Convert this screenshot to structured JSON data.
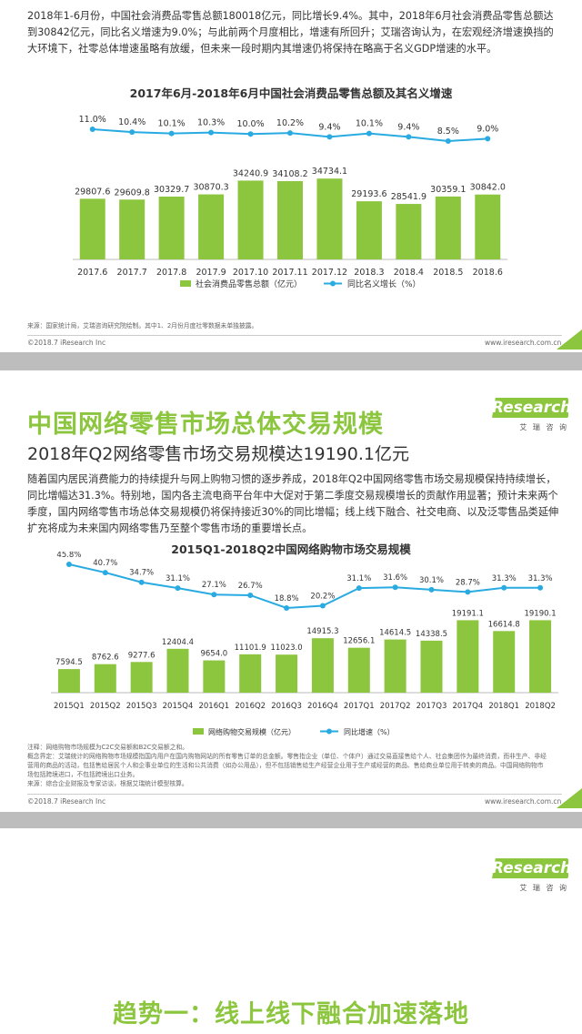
{
  "section1": {
    "paragraph": "2018年1-6月份，中国社会消费品零售总额180018亿元，同比增长9.4%。其中，2018年6月社会消费品零售总额达到30842亿元，同比名义增速为9.0%；与此前两个月度相比，增速有所回升；艾瑞咨询认为，在宏观经济增速换挡的大环境下，社零总体增速虽略有放缓，但未来一段时期内其增速仍将保持在略高于名义GDP增速的水平。",
    "source": "来源：国家统计局，艾瑞咨询研究院绘制。其中1、2月份月度社零数据未单独披露。",
    "copyright": "©2018.7 iResearch Inc",
    "website": "www.iresearch.com.cn"
  },
  "section2": {
    "headline": "中国网络零售市场总体交易规模",
    "subhead": "2018年Q2网络零售市场交易规模达19190.1亿元",
    "paragraph": "随着国内居民消费能力的持续提升与网上购物习惯的逐步养成，2018年Q2中国网络零售市场交易规模保持持续增长，同比增幅达31.3%。特别地，国内各主流电商平台年中大促对于第二季度交易规模增长的贡献作用显著；预计未来两个季度，国内网络零售市场总体交易规模仍将保持接近30%的同比增幅；线上线下融合、社交电商、以及泛零售品类延伸扩充将成为未来国内网络零售乃至整个零售市场的重要增长点。",
    "notes": [
      "注释：网络购物市场规模为C2C交易额和B2C交易额之和。",
      "概念界定：艾瑞统计的网络购物市场规模指国内用户在国内购物网站的所有零售订单的总金额。零售指企业（单位、个体户）通过交易直接售给个人、社会集团作为最终消费，而非生产、非经营用的商品的活动，包括售给居民个人和企事业单位的生活和公共消费（如办公用品），但不包括销售给生产经营企业用于生产或经营的商品、售给商业单位用于转卖的商品。中国网络购物市场包括跨境进口，不包括跨境出口业务。",
      "来源：综合企业财报及专家访谈，根据艾瑞统计模型核算。"
    ],
    "copyright": "©2018.7 iResearch Inc",
    "website": "www.iresearch.com.cn"
  },
  "logo": {
    "name": "iResearch",
    "sub": "艾 瑞 咨 询"
  },
  "bottom_title": "趋势一：线上线下融合加速落地",
  "colors": {
    "green": "#8cc63f",
    "blue": "#29abe2",
    "grey": "#bdbdbd"
  },
  "chart_data": [
    {
      "type": "bar",
      "title": "2017年6月-2018年6月中国社会消费品零售总额及其名义增速",
      "categories": [
        "2017.6",
        "2017.7",
        "2017.8",
        "2017.9",
        "2017.10",
        "2017.11",
        "2017.12",
        "2018.3",
        "2018.4",
        "2018.5",
        "2018.6"
      ],
      "series": [
        {
          "name": "社会消费品零售总额（亿元）",
          "kind": "bar",
          "values": [
            29807.6,
            29609.8,
            30329.7,
            30870.3,
            34240.9,
            34108.2,
            34734.1,
            29193.6,
            28541.9,
            30359.1,
            30842.0
          ],
          "labels": [
            "29807.6",
            "29609.8",
            "30329.7",
            "30870.3",
            "34240.9",
            "34108.2",
            "34734.1",
            "29193.6",
            "28541.9",
            "30359.1",
            "30842.0"
          ]
        },
        {
          "name": "同比名义增长（%）",
          "kind": "line",
          "values": [
            11.0,
            10.4,
            10.1,
            10.3,
            10.0,
            10.2,
            9.4,
            10.1,
            9.4,
            8.5,
            9.0
          ],
          "labels": [
            "11.0%",
            "10.4%",
            "10.1%",
            "10.3%",
            "10.0%",
            "10.2%",
            "9.4%",
            "10.1%",
            "9.4%",
            "8.5%",
            "9.0%"
          ]
        }
      ],
      "legend": "bottom"
    },
    {
      "type": "bar",
      "title": "2015Q1-2018Q2中国网络购物市场交易规模",
      "categories": [
        "2015Q1",
        "2015Q2",
        "2015Q3",
        "2015Q4",
        "2016Q1",
        "2016Q2",
        "2016Q3",
        "2016Q4",
        "2017Q1",
        "2017Q2",
        "2017Q3",
        "2017Q4",
        "2018Q1",
        "2018Q2"
      ],
      "series": [
        {
          "name": "网络购物交易规模（亿元）",
          "kind": "bar",
          "values": [
            7594.5,
            8762.6,
            9277.6,
            12404.4,
            9654.0,
            11101.9,
            11023.0,
            14915.3,
            12656.1,
            14614.5,
            14338.5,
            19191.1,
            16614.8,
            19190.1
          ],
          "labels": [
            "7594.5",
            "8762.6",
            "9277.6",
            "12404.4",
            "9654.0",
            "11101.9",
            "11023.0",
            "14915.3",
            "12656.1",
            "14614.5",
            "14338.5",
            "19191.1",
            "16614.8",
            "19190.1"
          ]
        },
        {
          "name": "同比增速（%）",
          "kind": "line",
          "values": [
            45.8,
            40.7,
            34.7,
            31.1,
            27.1,
            26.7,
            18.8,
            20.2,
            31.1,
            31.6,
            30.1,
            28.7,
            31.3,
            31.3
          ],
          "labels": [
            "45.8%",
            "40.7%",
            "34.7%",
            "31.1%",
            "27.1%",
            "26.7%",
            "18.8%",
            "20.2%",
            "31.1%",
            "31.6%",
            "30.1%",
            "28.7%",
            "31.3%",
            "31.3%"
          ]
        }
      ],
      "legend": "bottom"
    }
  ]
}
